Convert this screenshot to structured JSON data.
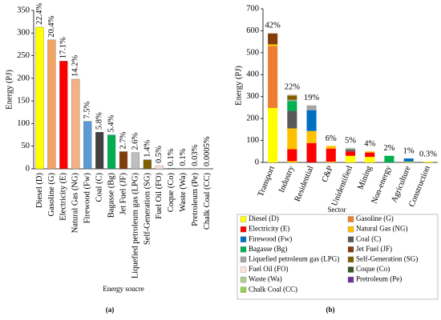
{
  "chart_data": [
    {
      "type": "bar",
      "caption": "(a)",
      "xlabel": "Energy soucre",
      "ylabel": "Energy (PJ)",
      "categories": [
        "Diesel (D)",
        "Gasoline (G)",
        "Electricity (E)",
        "Natural Gas (NG)",
        "Firewood (Fw)",
        "Coal (C)",
        "Bagasse (Bg)",
        "Jet Fuel (JF)",
        "Liquefied petroleum gas (LPG)",
        "Self-Generation (SG)",
        "Fuel Oil (FO)",
        "Coque (Co)",
        "Waste (Wa)",
        "Pretroleum (Pe)",
        "Chalk Coal (CC)"
      ],
      "values": [
        313,
        285,
        238,
        198,
        105,
        81,
        75,
        38,
        36,
        20,
        7,
        1,
        1,
        0.4,
        0.007
      ],
      "shares": [
        22.4,
        20.4,
        17.1,
        14.2,
        7.5,
        5.8,
        5.4,
        2.7,
        2.6,
        1.4,
        0.5,
        0.1,
        0.1,
        0.03,
        0.0005
      ],
      "share_labels": [
        "22.4%",
        "20.4%",
        "17.1%",
        "14.2%",
        "7.5%",
        "5.8%",
        "5.4%",
        "2.7%",
        "2.6%",
        "1.4%",
        "0.5%",
        "0.1%",
        "0.1%",
        "0.03%",
        "0.0005%"
      ],
      "colors": [
        "#ffff00",
        "#f4a460",
        "#ff0000",
        "#f4b183",
        "#5b9bd5",
        "#404040",
        "#00b050",
        "#843c0c",
        "#bfbfbf",
        "#7f6000",
        "#fbe5d6",
        "#375623",
        "#a9d18e",
        "#7030a0",
        "#92d050"
      ],
      "ylim": [
        0,
        350
      ],
      "yticks": [
        0,
        50,
        100,
        150,
        200,
        250,
        300,
        350
      ]
    },
    {
      "type": "stacked_bar",
      "caption": "(b)",
      "xlabel": "Sector",
      "ylabel": "Energy (PJ)",
      "categories": [
        "Transport",
        "Industry",
        "Residential",
        "C&P",
        "Unidentified",
        "Mining",
        "Non-energy",
        "Agriculture",
        "Construction"
      ],
      "shares": [
        42,
        22,
        19,
        6,
        5,
        4,
        2,
        1,
        0.3
      ],
      "share_labels": [
        "42%",
        "22%",
        "19%",
        "6%",
        "5%",
        "4%",
        "2%",
        "1%",
        "0.3%"
      ],
      "ylim": [
        0,
        700
      ],
      "yticks": [
        0,
        100,
        200,
        300,
        400,
        500,
        600,
        700
      ],
      "series": [
        {
          "name": "Diesel (D)",
          "color": "#ffff00",
          "values": [
            248,
            5,
            0,
            3,
            30,
            25,
            0,
            3,
            4
          ]
        },
        {
          "name": "Gasoline (G)",
          "color": "#ed7d31",
          "values": [
            282,
            0,
            0,
            0,
            0,
            0,
            0,
            0,
            0
          ]
        },
        {
          "name": "Electricity (E)",
          "color": "#ff0000",
          "values": [
            0,
            55,
            88,
            60,
            20,
            20,
            0,
            0,
            0
          ]
        },
        {
          "name": "Natural Gas (NG)",
          "color": "#ffc000",
          "values": [
            8,
            95,
            55,
            12,
            0,
            5,
            0,
            0,
            0
          ]
        },
        {
          "name": "Firewood (Fw)",
          "color": "#0070c0",
          "values": [
            0,
            0,
            95,
            0,
            0,
            0,
            0,
            15,
            0
          ]
        },
        {
          "name": "Coal (C)",
          "color": "#595959",
          "values": [
            0,
            80,
            0,
            0,
            8,
            0,
            0,
            0,
            0
          ]
        },
        {
          "name": "Bagasse (Bg)",
          "color": "#00b050",
          "values": [
            0,
            45,
            0,
            0,
            0,
            0,
            30,
            0,
            0
          ]
        },
        {
          "name": "Jet Fuel (JF)",
          "color": "#843c0c",
          "values": [
            50,
            0,
            0,
            0,
            0,
            0,
            0,
            0,
            0
          ]
        },
        {
          "name": "Liquefied petroleum gas (LPG)",
          "color": "#a6a6a6",
          "values": [
            0,
            5,
            22,
            0,
            7,
            0,
            0,
            0,
            0
          ]
        },
        {
          "name": "Self-Generation (SG)",
          "color": "#7f6000",
          "values": [
            0,
            20,
            0,
            0,
            0,
            0,
            0,
            0,
            0
          ]
        },
        {
          "name": "Fuel Oil (FO)",
          "color": "#fbe5d6",
          "values": [
            3,
            3,
            0,
            0,
            0,
            0,
            0,
            0,
            0
          ]
        },
        {
          "name": "Coque (Co)",
          "color": "#375623",
          "values": [
            0,
            1,
            0,
            0,
            0,
            0,
            0,
            0,
            0
          ]
        },
        {
          "name": "Waste (Wa)",
          "color": "#a9d18e",
          "values": [
            0,
            0,
            0,
            0,
            1,
            0,
            0,
            0,
            0
          ]
        },
        {
          "name": "Pretroleum (Pe)",
          "color": "#7030a0",
          "values": [
            0,
            0,
            0,
            0,
            0,
            0,
            0,
            0,
            0
          ]
        },
        {
          "name": "Chalk Coal (CC)",
          "color": "#92d050",
          "values": [
            0,
            0,
            0,
            0,
            0,
            0,
            0,
            0,
            0
          ]
        }
      ]
    }
  ]
}
